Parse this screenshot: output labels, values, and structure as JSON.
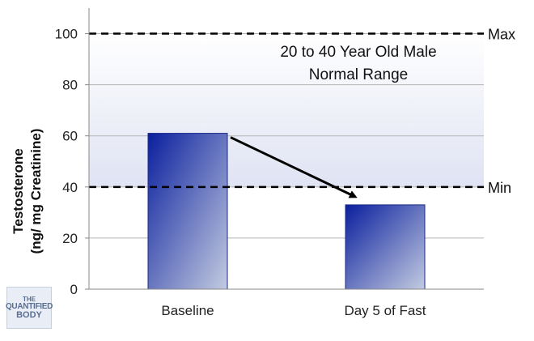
{
  "chart_data": {
    "type": "bar",
    "categories": [
      "Baseline",
      "Day 5 of Fast"
    ],
    "values": [
      61,
      33
    ],
    "ylabel_line1": "Testosterone",
    "ylabel_line2": "(ng/ mg Creatinine)",
    "ylim": [
      0,
      110
    ],
    "yticks": [
      0,
      20,
      40,
      60,
      80,
      100
    ],
    "grid": true,
    "reference_range": {
      "min": 40,
      "max": 100,
      "min_label": "Min",
      "max_label": "Max"
    },
    "range_annotation": [
      "20 to 40 Year Old Male",
      "Normal Range"
    ],
    "arrow": {
      "from": "Baseline",
      "to": "Day 5 of Fast"
    },
    "colors": {
      "bar_top": "#0a1f9e",
      "bar_bottom": "#c3cbe0",
      "bar_stroke": "#1c2a8a",
      "range_band": "#dfe3f3"
    }
  },
  "logo": {
    "line1": "THE",
    "line2": "QUANTIFIED",
    "line3": "BODY"
  }
}
